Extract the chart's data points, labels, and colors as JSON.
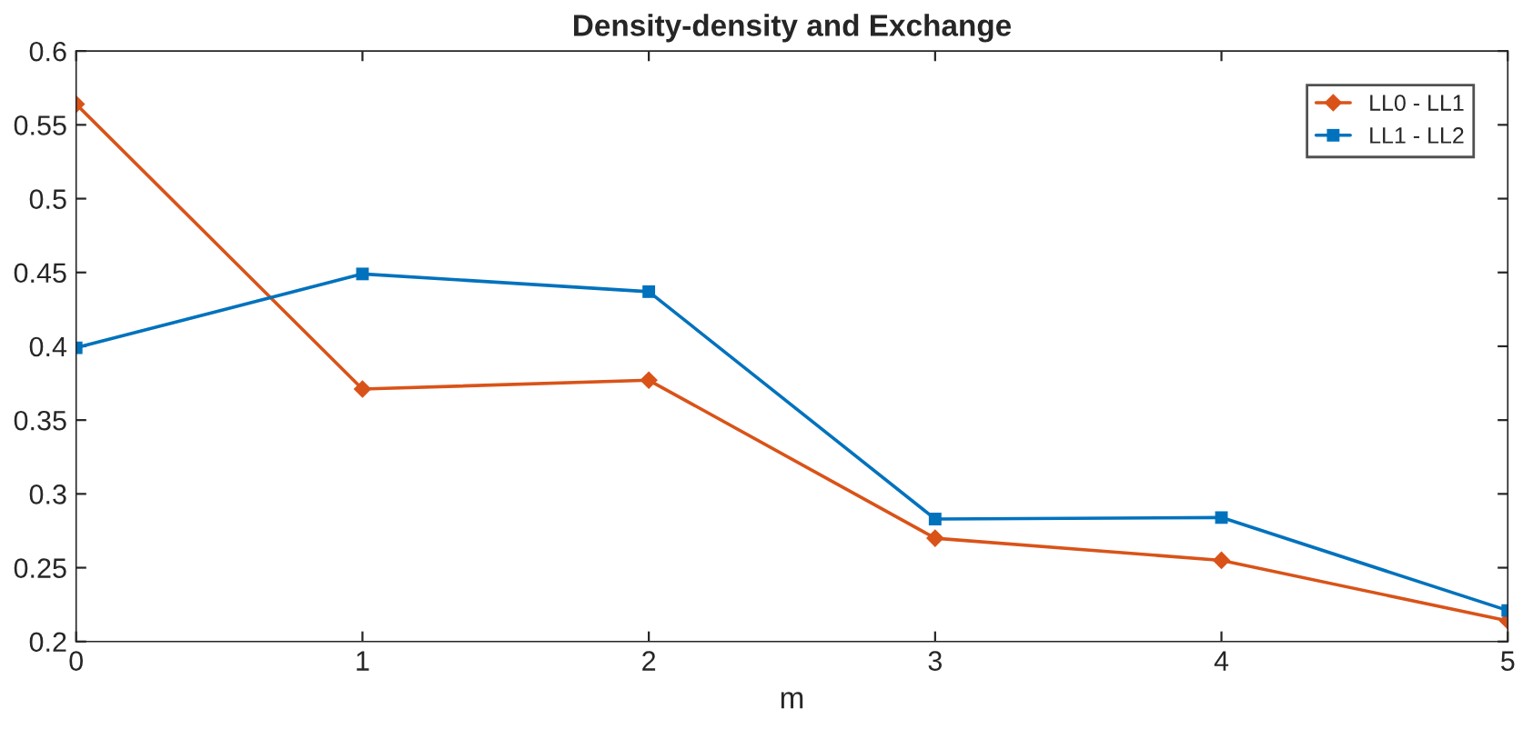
{
  "chart_data": {
    "type": "line",
    "title": "Density-density and Exchange",
    "xlabel": "m",
    "x": [
      0,
      1,
      2,
      3,
      4,
      5
    ],
    "series": [
      {
        "name": "LL0 - LL1",
        "color": "#d95319",
        "marker": "diamond",
        "values": [
          0.564,
          0.371,
          0.377,
          0.27,
          0.255,
          0.214
        ]
      },
      {
        "name": "LL1 - LL2",
        "color": "#0072bd",
        "marker": "square",
        "values": [
          0.399,
          0.449,
          0.437,
          0.283,
          0.284,
          0.221
        ]
      }
    ],
    "xlim": [
      0,
      5
    ],
    "xticks": [
      0,
      1,
      2,
      3,
      4,
      5
    ],
    "ylim": [
      0.2,
      0.6
    ],
    "yticks": [
      0.2,
      0.25,
      0.3,
      0.35,
      0.4,
      0.45,
      0.5,
      0.55,
      0.6
    ],
    "grid": false,
    "legend": "top right",
    "line_style": "solid"
  }
}
